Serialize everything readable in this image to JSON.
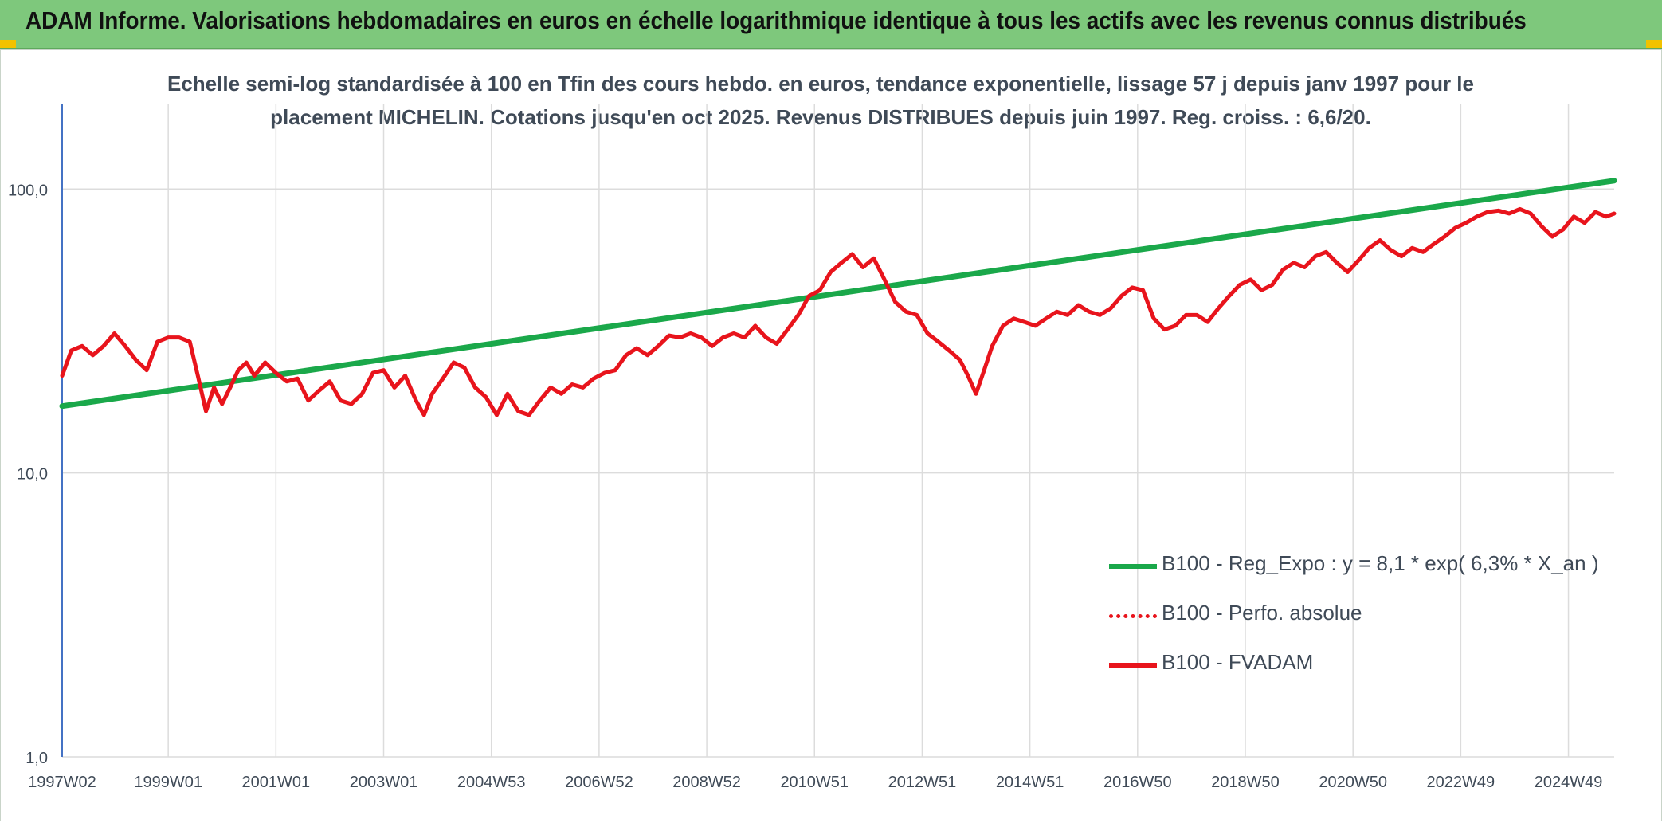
{
  "header": {
    "title": "ADAM Informe. Valorisations hebdomadaires en euros en échelle logarithmique identique à tous les actifs avec les revenus connus distribués"
  },
  "colors": {
    "banner": "#7ec87c",
    "regression": "#1aa84a",
    "series": "#e8141c",
    "grid": "#dcdcdc",
    "axis": "#4472c4",
    "text": "#3f4a57"
  },
  "chart_data": {
    "type": "line",
    "subtitle_line1": "Echelle semi-log standardisée à 100 en Tfin des cours hebdo. en euros, tendance exponentielle, lissage 57 j depuis janv 1997 pour le",
    "subtitle_line2": "placement MICHELIN. Cotations jusqu'en oct 2025. Revenus DISTRIBUES depuis juin 1997. Reg. croiss. : 6,6/20.",
    "y_scale": "log",
    "ylim": [
      1,
      200
    ],
    "xlim": [
      1997.03,
      2025.85
    ],
    "y_ticks": [
      {
        "value": 100,
        "label": "100,0"
      },
      {
        "value": 10,
        "label": "10,0"
      },
      {
        "value": 1,
        "label": "1,0"
      }
    ],
    "x_ticks": [
      {
        "value": 1997.03,
        "label": "1997W02"
      },
      {
        "value": 1999.0,
        "label": "1999W01"
      },
      {
        "value": 2001.0,
        "label": "2001W01"
      },
      {
        "value": 2003.0,
        "label": "2003W01"
      },
      {
        "value": 2005.0,
        "label": "2004W53"
      },
      {
        "value": 2007.0,
        "label": "2006W52"
      },
      {
        "value": 2009.0,
        "label": "2008W52"
      },
      {
        "value": 2011.0,
        "label": "2010W51"
      },
      {
        "value": 2013.0,
        "label": "2012W51"
      },
      {
        "value": 2015.0,
        "label": "2014W51"
      },
      {
        "value": 2017.0,
        "label": "2016W50"
      },
      {
        "value": 2019.0,
        "label": "2018W50"
      },
      {
        "value": 2021.0,
        "label": "2020W50"
      },
      {
        "value": 2023.0,
        "label": "2022W49"
      },
      {
        "value": 2025.0,
        "label": "2024W49"
      }
    ],
    "grid": true,
    "legend_position": "bottom-right",
    "series": [
      {
        "name": "B100 - Reg_Expo : y = 8,1 * exp( 6,3% *  X_an )",
        "style": "solid-thick",
        "points": [
          [
            1997.03,
            17.2
          ],
          [
            2025.85,
            107
          ]
        ]
      },
      {
        "name": "B100 - Perfo. absolue",
        "style": "dotted",
        "points": []
      },
      {
        "name": "B100 - FVADAM",
        "style": "solid",
        "points": [
          [
            1997.03,
            22
          ],
          [
            1997.2,
            27
          ],
          [
            1997.4,
            28
          ],
          [
            1997.6,
            26
          ],
          [
            1997.8,
            28
          ],
          [
            1998.0,
            31
          ],
          [
            1998.2,
            28
          ],
          [
            1998.4,
            25
          ],
          [
            1998.6,
            23
          ],
          [
            1998.8,
            29
          ],
          [
            1999.0,
            30
          ],
          [
            1999.2,
            30
          ],
          [
            1999.4,
            29
          ],
          [
            1999.55,
            22
          ],
          [
            1999.7,
            16.5
          ],
          [
            1999.85,
            20
          ],
          [
            2000.0,
            17.5
          ],
          [
            2000.15,
            20
          ],
          [
            2000.3,
            23
          ],
          [
            2000.45,
            24.5
          ],
          [
            2000.6,
            22
          ],
          [
            2000.8,
            24.5
          ],
          [
            2001.0,
            22.5
          ],
          [
            2001.2,
            21
          ],
          [
            2001.4,
            21.5
          ],
          [
            2001.6,
            18
          ],
          [
            2001.8,
            19.5
          ],
          [
            2002.0,
            21
          ],
          [
            2002.2,
            18
          ],
          [
            2002.4,
            17.5
          ],
          [
            2002.6,
            19
          ],
          [
            2002.8,
            22.5
          ],
          [
            2003.0,
            23
          ],
          [
            2003.2,
            20
          ],
          [
            2003.4,
            22
          ],
          [
            2003.6,
            18
          ],
          [
            2003.75,
            16
          ],
          [
            2003.9,
            19
          ],
          [
            2004.1,
            21.5
          ],
          [
            2004.3,
            24.5
          ],
          [
            2004.5,
            23.5
          ],
          [
            2004.7,
            20
          ],
          [
            2004.9,
            18.5
          ],
          [
            2005.1,
            16
          ],
          [
            2005.3,
            19
          ],
          [
            2005.5,
            16.5
          ],
          [
            2005.7,
            16
          ],
          [
            2005.9,
            18
          ],
          [
            2006.1,
            20
          ],
          [
            2006.3,
            19
          ],
          [
            2006.5,
            20.5
          ],
          [
            2006.7,
            20
          ],
          [
            2006.9,
            21.5
          ],
          [
            2007.1,
            22.5
          ],
          [
            2007.3,
            23
          ],
          [
            2007.5,
            26
          ],
          [
            2007.7,
            27.5
          ],
          [
            2007.9,
            26
          ],
          [
            2008.1,
            28
          ],
          [
            2008.3,
            30.5
          ],
          [
            2008.5,
            30
          ],
          [
            2008.7,
            31
          ],
          [
            2008.9,
            30
          ],
          [
            2009.1,
            28
          ],
          [
            2009.3,
            30
          ],
          [
            2009.5,
            31
          ],
          [
            2009.7,
            30
          ],
          [
            2009.9,
            33
          ],
          [
            2010.1,
            30
          ],
          [
            2010.3,
            28.5
          ],
          [
            2010.5,
            32
          ],
          [
            2010.7,
            36
          ],
          [
            2010.9,
            42
          ],
          [
            2011.1,
            44
          ],
          [
            2011.3,
            51
          ],
          [
            2011.5,
            55
          ],
          [
            2011.7,
            59
          ],
          [
            2011.9,
            53
          ],
          [
            2012.1,
            57
          ],
          [
            2012.3,
            48
          ],
          [
            2012.5,
            40
          ],
          [
            2012.7,
            37
          ],
          [
            2012.9,
            36
          ],
          [
            2013.1,
            31
          ],
          [
            2013.3,
            29
          ],
          [
            2013.5,
            27
          ],
          [
            2013.7,
            25
          ],
          [
            2013.85,
            22
          ],
          [
            2014.0,
            19
          ],
          [
            2014.15,
            23
          ],
          [
            2014.3,
            28
          ],
          [
            2014.5,
            33
          ],
          [
            2014.7,
            35
          ],
          [
            2014.9,
            34
          ],
          [
            2015.1,
            33
          ],
          [
            2015.3,
            35
          ],
          [
            2015.5,
            37
          ],
          [
            2015.7,
            36
          ],
          [
            2015.9,
            39
          ],
          [
            2016.1,
            37
          ],
          [
            2016.3,
            36
          ],
          [
            2016.5,
            38
          ],
          [
            2016.7,
            42
          ],
          [
            2016.9,
            45
          ],
          [
            2017.1,
            44
          ],
          [
            2017.3,
            35
          ],
          [
            2017.5,
            32
          ],
          [
            2017.7,
            33
          ],
          [
            2017.9,
            36
          ],
          [
            2018.1,
            36
          ],
          [
            2018.3,
            34
          ],
          [
            2018.5,
            38
          ],
          [
            2018.7,
            42
          ],
          [
            2018.9,
            46
          ],
          [
            2019.1,
            48
          ],
          [
            2019.3,
            44
          ],
          [
            2019.5,
            46
          ],
          [
            2019.7,
            52
          ],
          [
            2019.9,
            55
          ],
          [
            2020.1,
            53
          ],
          [
            2020.3,
            58
          ],
          [
            2020.5,
            60
          ],
          [
            2020.7,
            55
          ],
          [
            2020.9,
            51
          ],
          [
            2021.1,
            56
          ],
          [
            2021.3,
            62
          ],
          [
            2021.5,
            66
          ],
          [
            2021.7,
            61
          ],
          [
            2021.9,
            58
          ],
          [
            2022.1,
            62
          ],
          [
            2022.3,
            60
          ],
          [
            2022.5,
            64
          ],
          [
            2022.7,
            68
          ],
          [
            2022.9,
            73
          ],
          [
            2023.1,
            76
          ],
          [
            2023.3,
            80
          ],
          [
            2023.5,
            83
          ],
          [
            2023.7,
            84
          ],
          [
            2023.9,
            82
          ],
          [
            2024.1,
            85
          ],
          [
            2024.3,
            82
          ],
          [
            2024.5,
            74
          ],
          [
            2024.7,
            68
          ],
          [
            2024.9,
            72
          ],
          [
            2025.1,
            80
          ],
          [
            2025.3,
            76
          ],
          [
            2025.5,
            83
          ],
          [
            2025.7,
            80
          ],
          [
            2025.85,
            82
          ]
        ]
      }
    ]
  }
}
